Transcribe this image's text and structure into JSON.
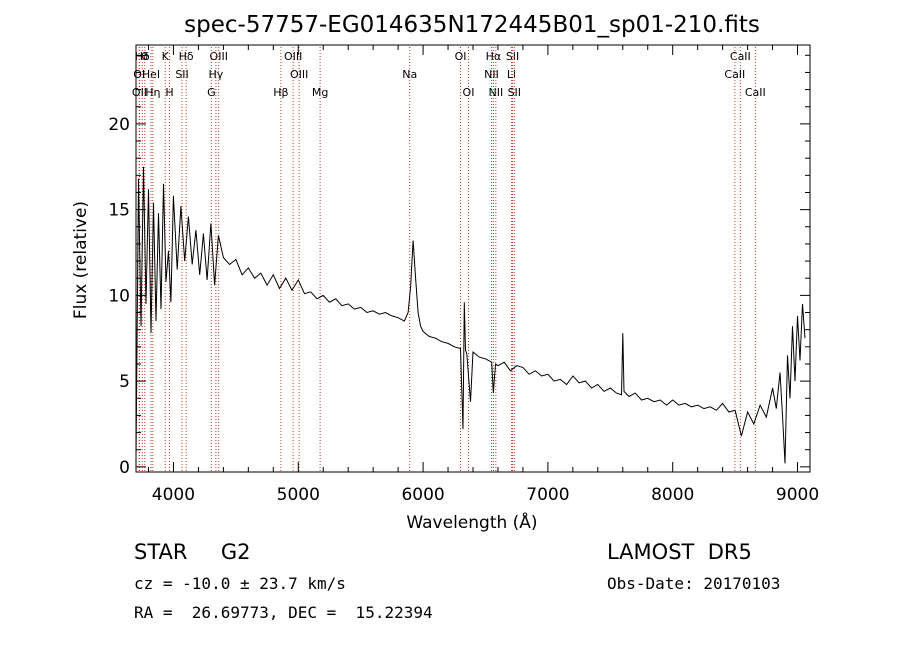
{
  "chart_data": {
    "type": "line",
    "title": "spec-57757-EG014635N172445B01_sp01-210.fits",
    "xlabel": "Wavelength (Å)",
    "ylabel": "Flux (relative)",
    "xlim": [
      3700,
      9100
    ],
    "ylim": [
      -0.3,
      24.6
    ],
    "x_ticks": [
      4000,
      5000,
      6000,
      7000,
      8000,
      9000
    ],
    "y_ticks": [
      0,
      5,
      10,
      15,
      20
    ],
    "grid": false,
    "legend": "none",
    "colors": {
      "line": "#000000",
      "markers": "#c0392b",
      "axes": "#000000"
    },
    "series": [
      {
        "x": [
          3700,
          3720,
          3740,
          3760,
          3780,
          3800,
          3820,
          3840,
          3860,
          3880,
          3900,
          3920,
          3940,
          3960,
          3980,
          4000,
          4030,
          4060,
          4090,
          4120,
          4150,
          4180,
          4210,
          4240,
          4270,
          4300,
          4330,
          4360,
          4400,
          4450,
          4500,
          4550,
          4600,
          4650,
          4700,
          4750,
          4800,
          4850,
          4900,
          4950,
          5000,
          5050,
          5100,
          5150,
          5200,
          5250,
          5300,
          5350,
          5400,
          5450,
          5500,
          5550,
          5600,
          5650,
          5700,
          5750,
          5800,
          5850,
          5880,
          5900,
          5920,
          5940,
          5960,
          5980,
          6000,
          6050,
          6100,
          6150,
          6200,
          6250,
          6300,
          6320,
          6330,
          6340,
          6350,
          6380,
          6400,
          6450,
          6500,
          6550,
          6563,
          6580,
          6600,
          6650,
          6700,
          6750,
          6800,
          6850,
          6900,
          6950,
          7000,
          7050,
          7100,
          7150,
          7200,
          7250,
          7300,
          7350,
          7400,
          7450,
          7500,
          7550,
          7590,
          7600,
          7610,
          7650,
          7700,
          7750,
          7800,
          7850,
          7900,
          7950,
          8000,
          8050,
          8100,
          8150,
          8200,
          8250,
          8300,
          8350,
          8400,
          8450,
          8500,
          8550,
          8600,
          8650,
          8700,
          8750,
          8800,
          8830,
          8860,
          8880,
          8900,
          8920,
          8940,
          8960,
          8980,
          9000,
          9020,
          9040,
          9060
        ],
        "y": [
          0.5,
          16.8,
          8.2,
          17.5,
          9.5,
          16.2,
          7.8,
          15.4,
          8.5,
          14.8,
          9.2,
          16.5,
          10.8,
          12.6,
          9.6,
          15.8,
          11.5,
          15.2,
          12.0,
          14.6,
          11.8,
          13.8,
          11.2,
          13.6,
          10.9,
          14.2,
          10.6,
          13.5,
          12.2,
          11.8,
          12.1,
          11.2,
          11.6,
          11.0,
          11.3,
          10.6,
          11.2,
          10.4,
          11.0,
          10.3,
          10.9,
          10.1,
          10.2,
          9.8,
          10.0,
          9.6,
          9.8,
          9.4,
          9.5,
          9.2,
          9.3,
          9.0,
          9.1,
          8.9,
          9.0,
          8.8,
          8.7,
          8.5,
          9.0,
          10.5,
          13.2,
          11.0,
          9.0,
          8.2,
          7.9,
          7.6,
          7.5,
          7.3,
          7.2,
          7.0,
          6.9,
          2.2,
          9.6,
          6.8,
          6.6,
          3.8,
          6.7,
          6.4,
          6.3,
          6.1,
          4.3,
          6.0,
          5.9,
          6.1,
          5.6,
          5.9,
          5.8,
          5.4,
          5.6,
          5.3,
          5.4,
          5.0,
          5.1,
          4.8,
          5.3,
          4.9,
          5.0,
          4.6,
          4.8,
          4.4,
          4.6,
          4.3,
          4.2,
          7.8,
          4.4,
          4.1,
          4.3,
          3.9,
          4.0,
          3.8,
          3.9,
          3.6,
          3.9,
          3.6,
          3.7,
          3.5,
          3.6,
          3.4,
          3.5,
          3.3,
          3.7,
          3.2,
          3.3,
          1.8,
          3.2,
          2.5,
          3.6,
          2.9,
          4.6,
          3.4,
          5.5,
          3.0,
          0.2,
          6.5,
          4.0,
          8.2,
          5.0,
          8.8,
          6.2,
          9.5,
          7.5
        ]
      }
    ],
    "line_markers": [
      {
        "label": "Hδ",
        "x": 3750,
        "row": 1
      },
      {
        "label": "OI",
        "x": 3726,
        "row": 2
      },
      {
        "label": "OII",
        "x": 3728,
        "row": 3
      },
      {
        "label": "θ",
        "x": 3770,
        "row": 1
      },
      {
        "label": "HeI",
        "x": 3820,
        "row": 2
      },
      {
        "label": "Hη",
        "x": 3835,
        "row": 3
      },
      {
        "label": "K",
        "x": 3934,
        "row": 1
      },
      {
        "label": "SII",
        "x": 4069,
        "row": 2
      },
      {
        "label": "H",
        "x": 3969,
        "row": 3
      },
      {
        "label": "Hδ",
        "x": 4102,
        "row": 1
      },
      {
        "label": "OIII",
        "x": 4363,
        "row": 1
      },
      {
        "label": "Hγ",
        "x": 4340,
        "row": 2
      },
      {
        "label": "G",
        "x": 4304,
        "row": 3
      },
      {
        "label": "OIII",
        "x": 4959,
        "row": 1
      },
      {
        "label": "OIII",
        "x": 5007,
        "row": 2
      },
      {
        "label": "Hβ",
        "x": 4861,
        "row": 3
      },
      {
        "label": "Mg",
        "x": 5175,
        "row": 3
      },
      {
        "label": "Na",
        "x": 5893,
        "row": 2
      },
      {
        "label": "OI",
        "x": 6300,
        "row": 1
      },
      {
        "label": "OI",
        "x": 6364,
        "row": 3
      },
      {
        "label": "Hα",
        "x": 6563,
        "row": 1
      },
      {
        "label": "NII",
        "x": 6548,
        "row": 2
      },
      {
        "label": "NII",
        "x": 6583,
        "row": 3
      },
      {
        "label": "SII",
        "x": 6717,
        "row": 1
      },
      {
        "label": "Li",
        "x": 6708,
        "row": 2
      },
      {
        "label": "SII",
        "x": 6731,
        "row": 3
      },
      {
        "label": "CaII",
        "x": 8542,
        "row": 1
      },
      {
        "label": "CaII",
        "x": 8498,
        "row": 2
      },
      {
        "label": "CaII",
        "x": 8662,
        "row": 3
      }
    ]
  },
  "info": {
    "class_line": "STAR     G2",
    "survey": "LAMOST  DR5",
    "cz_line": "cz = -10.0 ± 23.7 km/s",
    "obs_date": "Obs-Date: 20170103",
    "coords_line": "RA =  26.69773, DEC =  15.22394"
  }
}
